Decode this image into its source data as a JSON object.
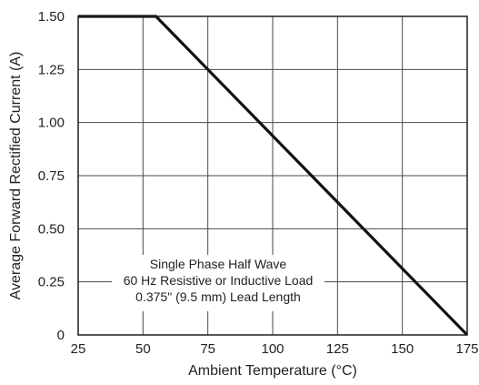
{
  "chart_data": {
    "type": "line",
    "xlabel": "Ambient Temperature (°C)",
    "ylabel": "Average Forward Rectified Current (A)",
    "xlim": [
      25,
      175
    ],
    "ylim": [
      0,
      1.5
    ],
    "x_ticks": [
      25,
      50,
      75,
      100,
      125,
      150,
      175
    ],
    "x_tick_labels": [
      "25",
      "50",
      "75",
      "100",
      "125",
      "150",
      "175"
    ],
    "y_ticks": [
      0,
      0.25,
      0.5,
      0.75,
      1.0,
      1.25,
      1.5
    ],
    "y_tick_labels": [
      "0",
      "0.25",
      "0.50",
      "0.75",
      "1.00",
      "1.25",
      "1.50"
    ],
    "grid": true,
    "series": [
      {
        "x": [
          25,
          55,
          175
        ],
        "y": [
          1.5,
          1.5,
          0
        ]
      }
    ],
    "annotation": {
      "lines": [
        "Single Phase Half Wave",
        "60 Hz Resistive or Inductive Load",
        "0.375\" (9.5 mm) Lead Length"
      ]
    }
  }
}
